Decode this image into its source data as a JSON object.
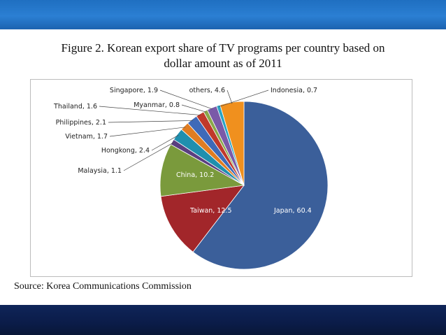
{
  "figure": {
    "title_line1": "Figure 2. Korean export share of TV programs per country based on",
    "title_line2": "dollar amount as of 2011",
    "source": "Source: Korea Communications Commission"
  },
  "chart_data": {
    "type": "pie",
    "start_angle_deg": 0,
    "direction": "clockwise",
    "slices": [
      {
        "label": "Japan",
        "value": 60.4,
        "color": "#3b5f9a",
        "text": "Japan, 60.4",
        "label_inside": true
      },
      {
        "label": "Taiwan",
        "value": 12.5,
        "color": "#a2262a",
        "text": "Taiwan, 12.5",
        "label_inside": true
      },
      {
        "label": "China",
        "value": 10.2,
        "color": "#7a9a3c",
        "text": "China, 10.2",
        "label_inside": true
      },
      {
        "label": "Malaysia",
        "value": 1.1,
        "color": "#5a3f80",
        "text": "Malaysia, 1.1",
        "label_inside": false
      },
      {
        "label": "Hongkong",
        "value": 2.4,
        "color": "#1f8fae",
        "text": "Hongkong, 2.4",
        "label_inside": false
      },
      {
        "label": "Vietnam",
        "value": 1.7,
        "color": "#e07d22",
        "text": "Vietnam, 1.7",
        "label_inside": false
      },
      {
        "label": "Philippines",
        "value": 2.1,
        "color": "#3f6ab8",
        "text": "Philippines, 2.1",
        "label_inside": false
      },
      {
        "label": "Thailand",
        "value": 1.6,
        "color": "#c0392b",
        "text": "Thailand, 1.6",
        "label_inside": false
      },
      {
        "label": "Myanmar",
        "value": 0.8,
        "color": "#8aa84a",
        "text": "Myanmar, 0.8",
        "label_inside": false
      },
      {
        "label": "Singapore",
        "value": 1.9,
        "color": "#7a5aa8",
        "text": "Singapore, 1.9",
        "label_inside": false
      },
      {
        "label": "Indonesia",
        "value": 0.7,
        "color": "#2aa3c4",
        "text": "Indonesia, 0.7",
        "label_inside": false
      },
      {
        "label": "others",
        "value": 4.6,
        "color": "#f0901e",
        "text": "others, 4.6",
        "label_inside": false
      }
    ]
  }
}
